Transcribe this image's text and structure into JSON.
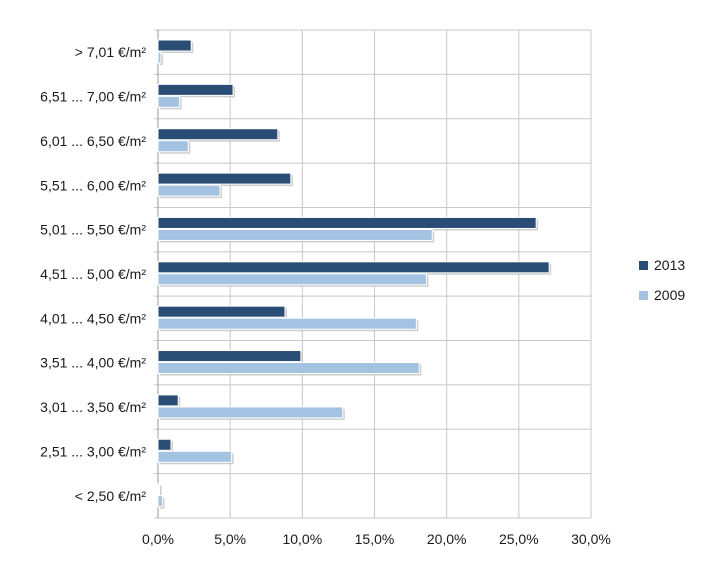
{
  "chart_data": {
    "type": "bar",
    "orientation": "horizontal",
    "categories": [
      "> 7,01 €/m²",
      "6,51 ... 7,00 €/m²",
      "6,01 ... 6,50 €/m²",
      "5,51 ... 6,00 €/m²",
      "5,01 ... 5,50 €/m²",
      "4,51 ... 5,00 €/m²",
      "4,01 ... 4,50 €/m²",
      "3,51 ... 4,00 €/m²",
      "3,01 ... 3,50 €/m²",
      "2,51 ... 3,00 €/m²",
      "< 2,50 €/m²"
    ],
    "series": [
      {
        "name": "2013",
        "color": "#2a4d75",
        "values": [
          2.3,
          5.2,
          8.3,
          9.2,
          26.2,
          27.1,
          8.8,
          9.9,
          1.4,
          0.9,
          0.0
        ]
      },
      {
        "name": "2009",
        "color": "#a4c3e3",
        "values": [
          0.2,
          1.5,
          2.1,
          4.3,
          19.0,
          18.6,
          17.9,
          18.1,
          12.8,
          5.1,
          0.3
        ]
      }
    ],
    "x_ticks": [
      "0,0%",
      "5,0%",
      "10,0%",
      "15,0%",
      "20,0%",
      "25,0%",
      "30,0%"
    ],
    "xlim": [
      0,
      30
    ],
    "grid": true,
    "legend_position": "right"
  }
}
